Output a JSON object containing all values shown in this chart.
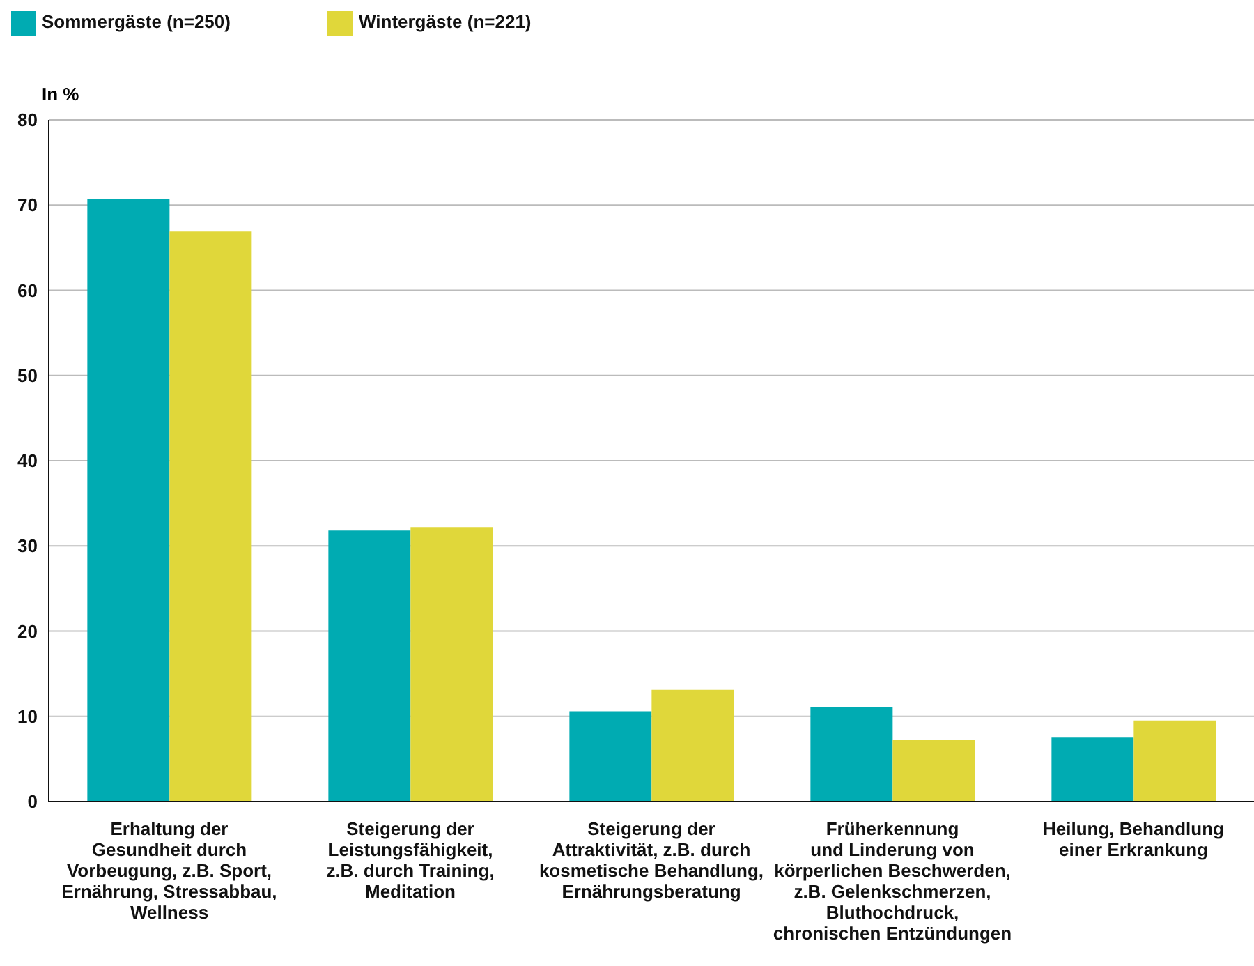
{
  "chart_data": {
    "type": "bar",
    "ylabel": "In %",
    "categories": [
      "Erhaltung der\nGesundheit durch\nVorbeugung, z.B. Sport,\nErnährung, Stressabbau,\nWellness",
      "Steigerung der\nLeistungsfähigkeit,\nz.B. durch Training,\nMeditation",
      "Steigerung der\nAttraktivität, z.B. durch\nkosmetische Behandlung,\nErnährungsberatung",
      "Früherkennung\nund Linderung von\nkörperlichen Beschwerden,\nz.B. Gelenkschmerzen,\nBluthochdruck,\nchronischen Entzündungen",
      "Heilung, Behandlung\neiner Erkrankung"
    ],
    "series": [
      {
        "name": "Sommergäste (n=250)",
        "color": "#00abb2",
        "values": [
          70.7,
          31.8,
          10.6,
          11.1,
          7.5
        ]
      },
      {
        "name": "Wintergäste (n=221)",
        "color": "#e0d73a",
        "values": [
          66.9,
          32.2,
          13.1,
          7.2,
          9.5
        ]
      }
    ],
    "ylim": [
      0,
      80
    ],
    "yticks": [
      0,
      10,
      20,
      30,
      40,
      50,
      60,
      70,
      80
    ],
    "grid": "y",
    "legend": "top left"
  }
}
